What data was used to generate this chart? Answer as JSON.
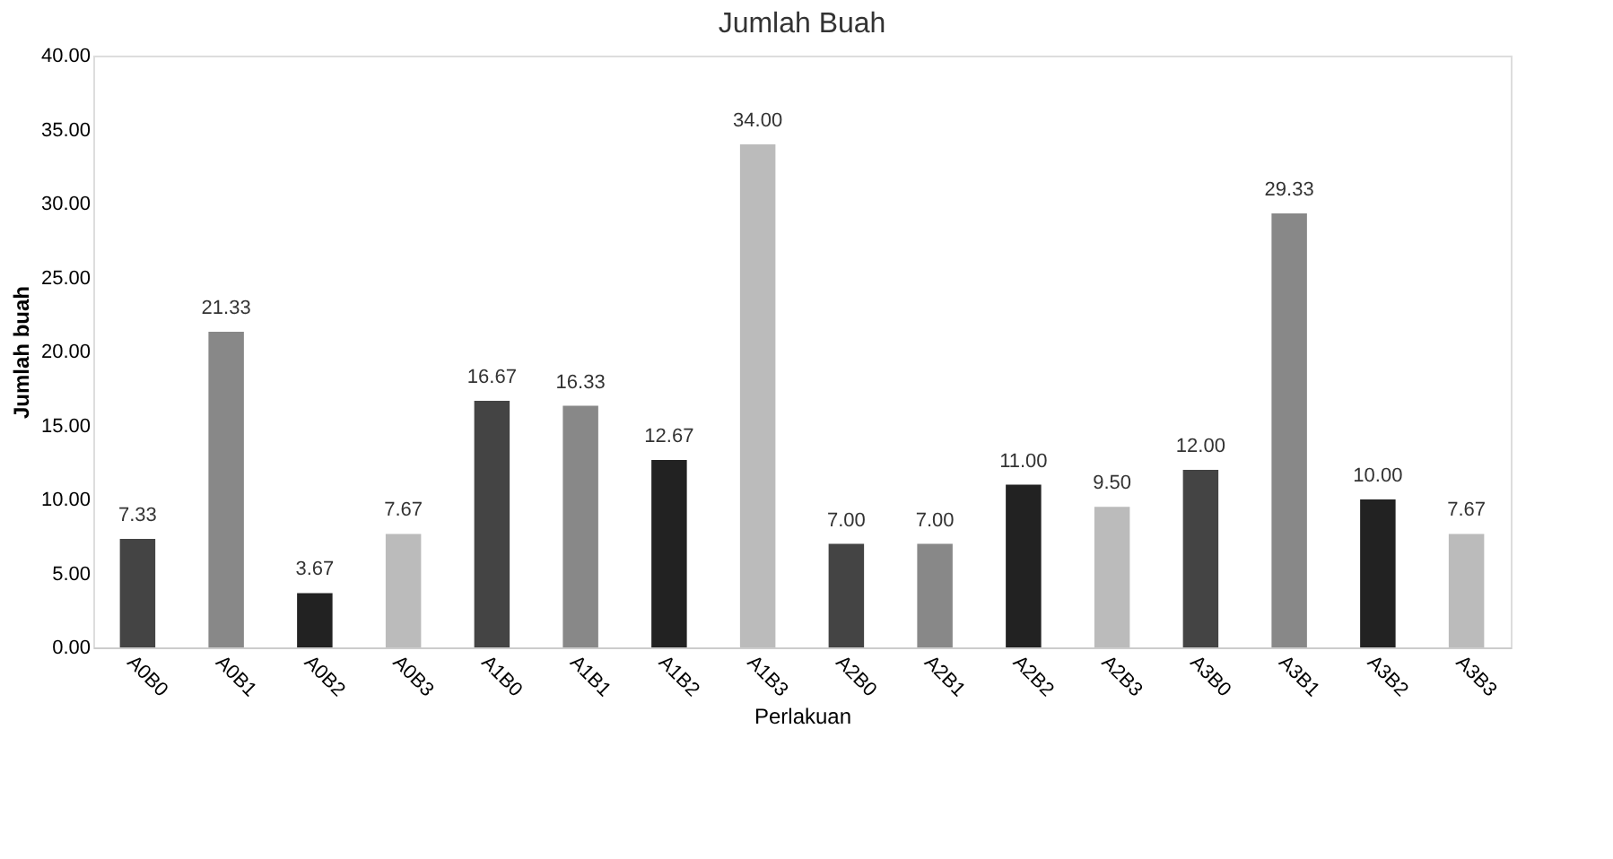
{
  "chart_data": {
    "type": "bar",
    "title": "Jumlah Buah",
    "xlabel": "Perlakuan",
    "ylabel": "Jumlah buah",
    "categories": [
      "A0B0",
      "A0B1",
      "A0B2",
      "A0B3",
      "A1B0",
      "A1B1",
      "A1B2",
      "A1B3",
      "A2B0",
      "A2B1",
      "A2B2",
      "A2B3",
      "A3B0",
      "A3B1",
      "A3B2",
      "A3B3"
    ],
    "values": [
      7.33,
      21.33,
      3.67,
      7.67,
      16.67,
      16.33,
      12.67,
      34.0,
      7.0,
      7.0,
      11.0,
      9.5,
      12.0,
      29.33,
      10.0,
      7.67
    ],
    "value_labels": [
      "7.33",
      "21.33",
      "3.67",
      "7.67",
      "16.67",
      "16.33",
      "12.67",
      "34.00",
      "7.00",
      "7.00",
      "11.00",
      "9.50",
      "12.00",
      "29.33",
      "10.00",
      "7.67"
    ],
    "colors": [
      "#444444",
      "#888888",
      "#222222",
      "#bbbbbb",
      "#444444",
      "#888888",
      "#222222",
      "#bbbbbb",
      "#444444",
      "#888888",
      "#222222",
      "#bbbbbb",
      "#444444",
      "#888888",
      "#222222",
      "#bbbbbb"
    ],
    "ylim": [
      0,
      40
    ],
    "yticks": [
      {
        "value": 0,
        "label": "0.00"
      },
      {
        "value": 5,
        "label": "5.00"
      },
      {
        "value": 10,
        "label": "10.00"
      },
      {
        "value": 15,
        "label": "15.00"
      },
      {
        "value": 20,
        "label": "20.00"
      },
      {
        "value": 25,
        "label": "25.00"
      },
      {
        "value": 30,
        "label": "30.00"
      },
      {
        "value": 35,
        "label": "35.00"
      },
      {
        "value": 40,
        "label": "40.00"
      }
    ],
    "grid": false
  }
}
